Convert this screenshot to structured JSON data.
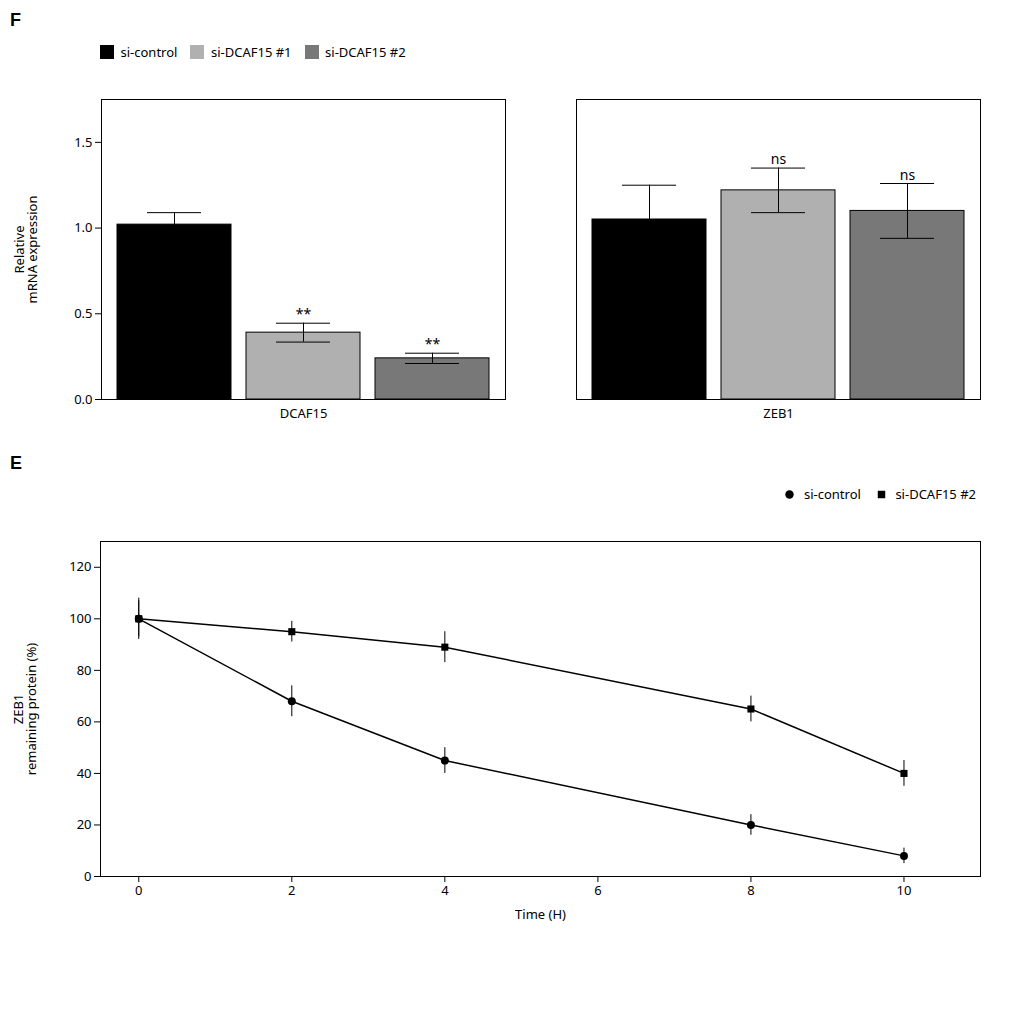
{
  "chart_data": [
    {
      "type": "bar",
      "title": "F",
      "categories": [
        "DCAF15",
        "ZEB1"
      ],
      "series": [
        {
          "name": "si-control",
          "color": "#000000",
          "values": [
            1.02,
            1.05
          ],
          "errors": [
            0.07,
            0.2
          ],
          "annotations": [
            null,
            null
          ]
        },
        {
          "name": "si-DCAF15 #1",
          "color": "#b0b0b0",
          "values": [
            0.39,
            1.22
          ],
          "errors": [
            0.055,
            0.13
          ],
          "annotations": [
            "**",
            "ns"
          ]
        },
        {
          "name": "si-DCAF15 #2",
          "color": "#787878",
          "values": [
            0.24,
            1.1
          ],
          "errors": [
            0.03,
            0.16
          ],
          "annotations": [
            "**",
            "ns"
          ]
        }
      ],
      "ylabel": "Relative\nmRNA expression",
      "ylim": [
        0,
        1.75
      ],
      "yticks": [
        {
          "value": 0,
          "label": "0.0"
        },
        0.5,
        {
          "value": 1,
          "label": "1.0"
        },
        1.5
      ],
      "legend": "upper left"
    },
    {
      "type": "line",
      "title": "E",
      "x": [
        0,
        2,
        4,
        8,
        10
      ],
      "series": [
        {
          "name": "si-control",
          "color": "#000000",
          "marker": "circle",
          "line_style": "solid",
          "values": [
            100,
            68,
            45,
            20,
            8
          ],
          "errors": [
            8,
            6,
            5,
            4,
            3
          ]
        },
        {
          "name": "si-DCAF15 #2",
          "color": "#000000",
          "marker": "square",
          "line_style": "solid",
          "values": [
            100,
            95,
            89,
            65,
            40
          ],
          "errors": [
            7,
            4,
            6,
            5,
            5
          ]
        }
      ],
      "xlabel": "Time (H)",
      "ylabel": "ZEB1\nremaining protein (%)",
      "xlim": [
        -0.5,
        11.0
      ],
      "ylim": [
        0,
        130
      ],
      "xticks": [
        0,
        2,
        4,
        6,
        8,
        10
      ],
      "yticks": [
        0,
        20,
        40,
        60,
        80,
        100,
        120
      ],
      "legend": "upper right"
    }
  ]
}
